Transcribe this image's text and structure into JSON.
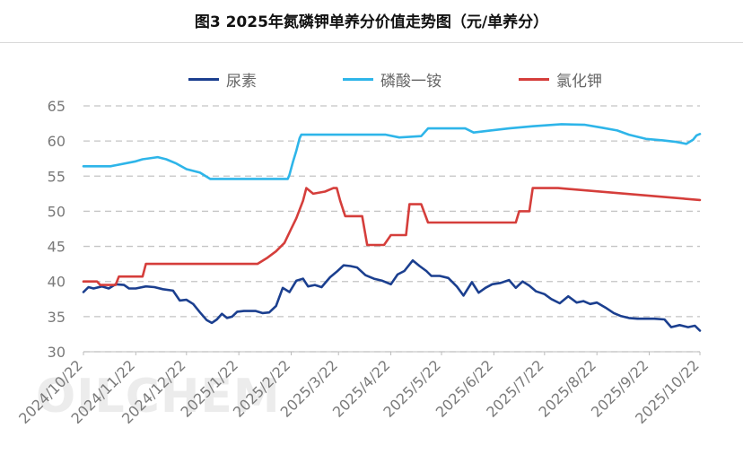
{
  "title": "图3 2025年氮磷钾单养分价值走势图（元/单养分）",
  "watermark": "OILCHEM",
  "chart_data": {
    "type": "line",
    "title": "图3 2025年氮磷钾单养分价值走势图（元/单养分）",
    "xlabel": "",
    "ylabel": "",
    "ylim": [
      30,
      65
    ],
    "yticks": [
      30,
      35,
      40,
      45,
      50,
      55,
      60,
      65
    ],
    "xlim": [
      "2024/10/22",
      "2025/10/22"
    ],
    "xticks": [
      "2024/10/22",
      "2024/11/22",
      "2024/12/22",
      "2025/1/22",
      "2025/2/22",
      "2025/3/22",
      "2025/4/22",
      "2025/5/22",
      "2025/6/22",
      "2025/7/22",
      "2025/8/22",
      "2025/9/22",
      "2025/10/22"
    ],
    "grid": "horizontal dashed",
    "legend_position": "top",
    "series": [
      {
        "name": "尿素",
        "color": "#1b3f8f",
        "x": [
          "2024/10/22",
          "2024/10/25",
          "2024/10/28",
          "2024/11/2",
          "2024/11/6",
          "2024/11/10",
          "2024/11/15",
          "2024/11/18",
          "2024/11/22",
          "2024/11/28",
          "2024/12/3",
          "2024/12/8",
          "2024/12/14",
          "2024/12/18",
          "2024/12/22",
          "2024/12/26",
          "2024/12/30",
          "2025/1/3",
          "2025/1/6",
          "2025/1/9",
          "2025/1/12",
          "2025/1/15",
          "2025/1/18",
          "2025/1/21",
          "2025/1/25",
          "2025/2/1",
          "2025/2/5",
          "2025/2/9",
          "2025/2/13",
          "2025/2/17",
          "2025/2/21",
          "2025/2/25",
          "2025/3/1",
          "2025/3/4",
          "2025/3/8",
          "2025/3/12",
          "2025/3/17",
          "2025/3/21",
          "2025/3/25",
          "2025/3/29",
          "2025/4/2",
          "2025/4/7",
          "2025/4/12",
          "2025/4/17",
          "2025/4/22",
          "2025/4/26",
          "2025/4/30",
          "2025/5/5",
          "2025/5/9",
          "2025/5/13",
          "2025/5/16",
          "2025/5/21",
          "2025/5/26",
          "2025/5/31",
          "2025/6/4",
          "2025/6/9",
          "2025/6/13",
          "2025/6/17",
          "2025/6/21",
          "2025/6/26",
          "2025/7/1",
          "2025/7/5",
          "2025/7/9",
          "2025/7/13",
          "2025/7/17",
          "2025/7/22",
          "2025/7/26",
          "2025/7/31",
          "2025/8/5",
          "2025/8/10",
          "2025/8/14",
          "2025/8/18",
          "2025/8/22",
          "2025/8/27",
          "2025/9/1",
          "2025/9/5",
          "2025/9/10",
          "2025/9/15",
          "2025/9/20",
          "2025/9/25",
          "2025/10/1",
          "2025/10/5",
          "2025/10/10",
          "2025/10/15",
          "2025/10/19",
          "2025/10/22"
        ],
        "values": [
          38.5,
          39.2,
          39.0,
          39.3,
          39.0,
          39.6,
          39.5,
          39.0,
          39.0,
          39.3,
          39.2,
          38.9,
          38.7,
          37.3,
          37.4,
          36.8,
          35.6,
          34.5,
          34.1,
          34.6,
          35.4,
          34.8,
          35.0,
          35.7,
          35.8,
          35.8,
          35.5,
          35.6,
          36.5,
          39.1,
          38.5,
          40.1,
          40.4,
          39.3,
          39.5,
          39.2,
          40.6,
          41.4,
          42.3,
          42.2,
          42.0,
          40.9,
          40.4,
          40.1,
          39.6,
          41.0,
          41.5,
          43.0,
          42.2,
          41.5,
          40.8,
          40.8,
          40.5,
          39.3,
          38.0,
          39.9,
          38.4,
          39.1,
          39.6,
          39.8,
          40.2,
          39.1,
          40.0,
          39.4,
          38.6,
          38.2,
          37.5,
          36.9,
          37.9,
          37.0,
          37.2,
          36.8,
          37.0,
          36.3,
          35.5,
          35.1,
          34.8,
          34.7,
          34.7,
          34.7,
          34.6,
          33.5,
          33.8,
          33.5,
          33.7,
          33.0
        ]
      },
      {
        "name": "磷酸一铵",
        "color": "#2eb5e9",
        "x": [
          "2024/10/22",
          "2024/11/4",
          "2024/11/7",
          "2024/11/22",
          "2024/11/26",
          "2024/12/5",
          "2024/12/10",
          "2024/12/16",
          "2024/12/22",
          "2024/12/30",
          "2025/1/5",
          "2025/1/15",
          "2025/1/28",
          "2025/2/20",
          "2025/2/21",
          "2025/2/23",
          "2025/2/25",
          "2025/2/27",
          "2025/2/28",
          "2025/3/20",
          "2025/4/19",
          "2025/4/27",
          "2025/5/10",
          "2025/5/14",
          "2025/6/5",
          "2025/6/10",
          "2025/6/20",
          "2025/7/1",
          "2025/7/15",
          "2025/8/1",
          "2025/8/15",
          "2025/8/25",
          "2025/9/3",
          "2025/9/10",
          "2025/9/20",
          "2025/9/30",
          "2025/10/7",
          "2025/10/14",
          "2025/10/18",
          "2025/10/20",
          "2025/10/22"
        ],
        "values": [
          56.4,
          56.4,
          56.4,
          57.1,
          57.4,
          57.7,
          57.4,
          56.8,
          56.0,
          55.5,
          54.6,
          54.6,
          54.6,
          54.6,
          55.2,
          57.0,
          58.6,
          60.4,
          60.9,
          60.9,
          60.9,
          60.5,
          60.7,
          61.8,
          61.8,
          61.2,
          61.5,
          61.8,
          62.1,
          62.4,
          62.3,
          61.9,
          61.5,
          60.9,
          60.3,
          60.1,
          59.9,
          59.6,
          60.2,
          60.8,
          61.0
        ]
      },
      {
        "name": "氯化钾",
        "color": "#d53e3b",
        "x": [
          "2024/10/22",
          "2024/10/30",
          "2024/11/1",
          "2024/11/10",
          "2024/11/12",
          "2024/11/26",
          "2024/11/28",
          "2025/1/10",
          "2025/2/2",
          "2025/2/8",
          "2025/2/13",
          "2025/2/18",
          "2025/2/22",
          "2025/2/25",
          "2025/3/1",
          "2025/3/3",
          "2025/3/7",
          "2025/3/14",
          "2025/3/19",
          "2025/3/21",
          "2025/3/23",
          "2025/3/26",
          "2025/3/28",
          "2025/4/5",
          "2025/4/8",
          "2025/4/18",
          "2025/4/22",
          "2025/5/1",
          "2025/5/3",
          "2025/5/10",
          "2025/5/14",
          "2025/6/25",
          "2025/6/27",
          "2025/7/5",
          "2025/7/7",
          "2025/7/13",
          "2025/7/15",
          "2025/7/30",
          "2025/10/22"
        ],
        "values": [
          40.0,
          40.0,
          39.5,
          39.5,
          40.7,
          40.7,
          42.5,
          42.5,
          42.5,
          43.4,
          44.3,
          45.5,
          47.5,
          49.0,
          51.5,
          53.3,
          52.5,
          52.8,
          53.3,
          53.3,
          51.5,
          49.3,
          49.3,
          49.3,
          45.2,
          45.2,
          46.6,
          46.6,
          51.0,
          51.0,
          48.4,
          48.4,
          48.4,
          48.4,
          50.0,
          50.0,
          53.3,
          53.3,
          51.6
        ]
      }
    ]
  }
}
